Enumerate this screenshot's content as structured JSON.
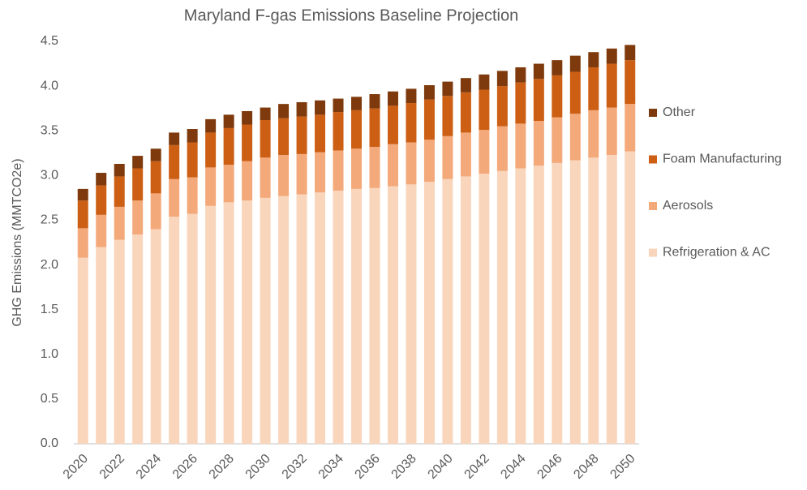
{
  "chart_data": {
    "type": "stacked_bar",
    "title": "Maryland F-gas Emissions Baseline Projection",
    "y_label": "GHG Emissions (MMTCO2e)",
    "categories": [
      "2020",
      null,
      "2022",
      null,
      "2024",
      null,
      "2026",
      null,
      "2028",
      null,
      "2030",
      null,
      "2032",
      null,
      "2034",
      null,
      "2036",
      null,
      "2038",
      null,
      "2040",
      null,
      "2042",
      null,
      "2044",
      null,
      "2046",
      null,
      "2048",
      null,
      "2050"
    ],
    "series": [
      {
        "name": "Refrigeration & AC",
        "color": "#f9d5bc",
        "values": [
          2.08,
          2.2,
          2.28,
          2.34,
          2.4,
          2.54,
          2.57,
          2.66,
          2.7,
          2.72,
          2.75,
          2.77,
          2.79,
          2.81,
          2.83,
          2.85,
          2.86,
          2.88,
          2.9,
          2.93,
          2.96,
          2.99,
          3.02,
          3.05,
          3.08,
          3.11,
          3.14,
          3.17,
          3.2,
          3.23,
          3.27
        ]
      },
      {
        "name": "Aerosols",
        "color": "#f3a97a",
        "values": [
          0.33,
          0.36,
          0.37,
          0.38,
          0.4,
          0.42,
          0.41,
          0.43,
          0.42,
          0.44,
          0.45,
          0.46,
          0.45,
          0.45,
          0.45,
          0.45,
          0.46,
          0.47,
          0.47,
          0.47,
          0.48,
          0.49,
          0.49,
          0.5,
          0.5,
          0.5,
          0.51,
          0.52,
          0.53,
          0.53,
          0.53
        ]
      },
      {
        "name": "Foam Manufacturing",
        "color": "#cc5f14",
        "values": [
          0.31,
          0.33,
          0.34,
          0.36,
          0.36,
          0.38,
          0.39,
          0.39,
          0.41,
          0.41,
          0.42,
          0.41,
          0.42,
          0.42,
          0.43,
          0.43,
          0.43,
          0.43,
          0.44,
          0.45,
          0.45,
          0.45,
          0.45,
          0.45,
          0.46,
          0.47,
          0.47,
          0.47,
          0.48,
          0.49,
          0.49
        ]
      },
      {
        "name": "Other",
        "color": "#7e3a0c",
        "values": [
          0.13,
          0.14,
          0.14,
          0.14,
          0.14,
          0.14,
          0.15,
          0.15,
          0.15,
          0.15,
          0.14,
          0.16,
          0.16,
          0.16,
          0.15,
          0.15,
          0.16,
          0.16,
          0.16,
          0.16,
          0.16,
          0.16,
          0.17,
          0.17,
          0.17,
          0.17,
          0.17,
          0.18,
          0.17,
          0.17,
          0.17
        ]
      }
    ],
    "ylim": [
      0,
      4.5
    ],
    "yticks": [
      {
        "value": 0,
        "label": "0.0"
      },
      0.5,
      {
        "value": 1,
        "label": "1.0"
      },
      1.5,
      {
        "value": 2,
        "label": "2.0"
      },
      2.5,
      {
        "value": 3,
        "label": "3.0"
      },
      3.5,
      {
        "value": 4,
        "label": "4.0"
      },
      4.5
    ],
    "legend": "right",
    "grid": false
  }
}
